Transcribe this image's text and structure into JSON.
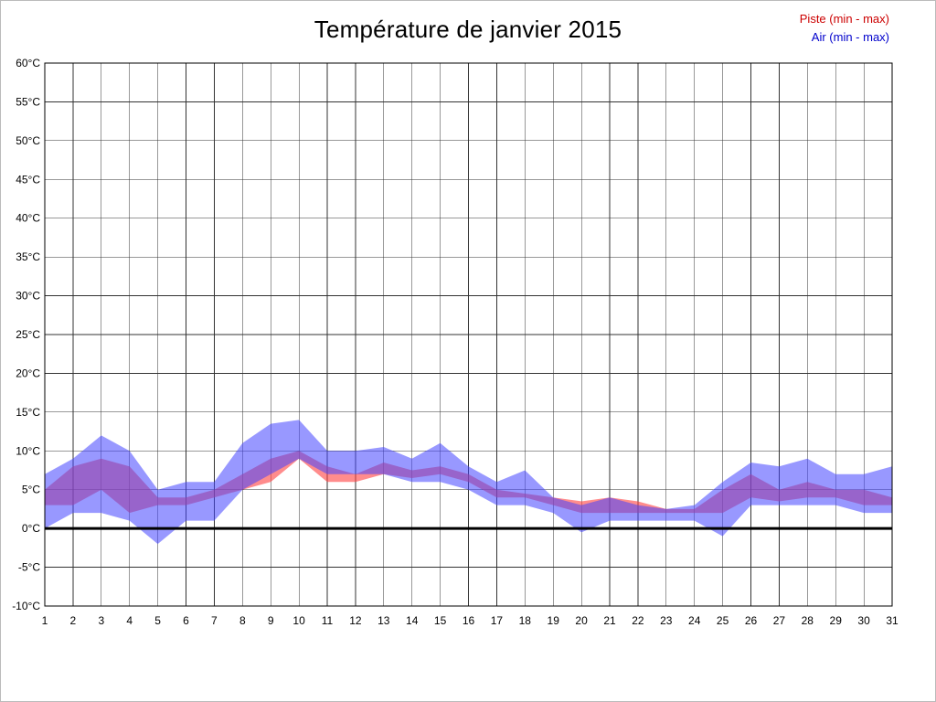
{
  "page": {
    "title": "Température de janvier 2015"
  },
  "legend": {
    "piste_label": "Piste (min - max)",
    "air_label": "Air (min - max)",
    "piste_color": "#cc0000",
    "air_color": "#0000cc"
  },
  "chart_data": {
    "type": "area",
    "title": "Température de janvier 2015",
    "xlabel": "",
    "ylabel": "",
    "x": [
      1,
      2,
      3,
      4,
      5,
      6,
      7,
      8,
      9,
      10,
      11,
      12,
      13,
      14,
      15,
      16,
      17,
      18,
      19,
      20,
      21,
      22,
      23,
      24,
      25,
      26,
      27,
      28,
      29,
      30,
      31
    ],
    "series": [
      {
        "name": "Piste (min - max)",
        "kind": "band",
        "min": [
          3,
          3,
          5,
          2,
          3,
          3,
          4,
          5,
          6,
          9,
          6,
          6,
          7,
          6.5,
          7,
          6,
          4,
          4,
          3,
          2,
          2,
          2,
          2,
          2,
          2,
          4,
          3.5,
          4,
          4,
          3,
          3
        ],
        "max": [
          5,
          8,
          9,
          8,
          4,
          4,
          5,
          7,
          9,
          10,
          8,
          7,
          8.5,
          7.5,
          8,
          7,
          5,
          4.5,
          4,
          3.5,
          4,
          3.5,
          2.5,
          2.5,
          5,
          7,
          5,
          6,
          5,
          5,
          4
        ],
        "fill": "#ff4040",
        "opacity": 0.6
      },
      {
        "name": "Air (min - max)",
        "kind": "band",
        "min": [
          0,
          2,
          2,
          1,
          -2,
          1,
          1,
          5,
          7,
          9,
          7,
          7,
          7,
          6,
          6,
          5,
          3,
          3,
          2,
          -0.5,
          1,
          1,
          1,
          1,
          -1,
          3,
          3,
          3,
          3,
          2,
          2
        ],
        "max": [
          7,
          9,
          12,
          10,
          5,
          6,
          6,
          11,
          13.5,
          14,
          10,
          10,
          10.5,
          9,
          11,
          8,
          6,
          7.5,
          4,
          3,
          4,
          3,
          2.5,
          3,
          6,
          8.5,
          8,
          9,
          7,
          7,
          8
        ],
        "fill": "#4444ff",
        "opacity": 0.55
      }
    ],
    "ylim": [
      -10,
      60
    ],
    "ytick_step": 5,
    "ytick_suffix": "°C",
    "xticks": [
      1,
      2,
      3,
      4,
      5,
      6,
      7,
      8,
      9,
      10,
      11,
      12,
      13,
      14,
      15,
      16,
      17,
      18,
      19,
      20,
      21,
      22,
      23,
      24,
      25,
      26,
      27,
      28,
      29,
      30,
      31
    ],
    "grid": true,
    "zero_line": true,
    "legend_position": "top-right",
    "grid_color": "#333333",
    "axis_color": "#000000",
    "tick_font_size": 12
  }
}
